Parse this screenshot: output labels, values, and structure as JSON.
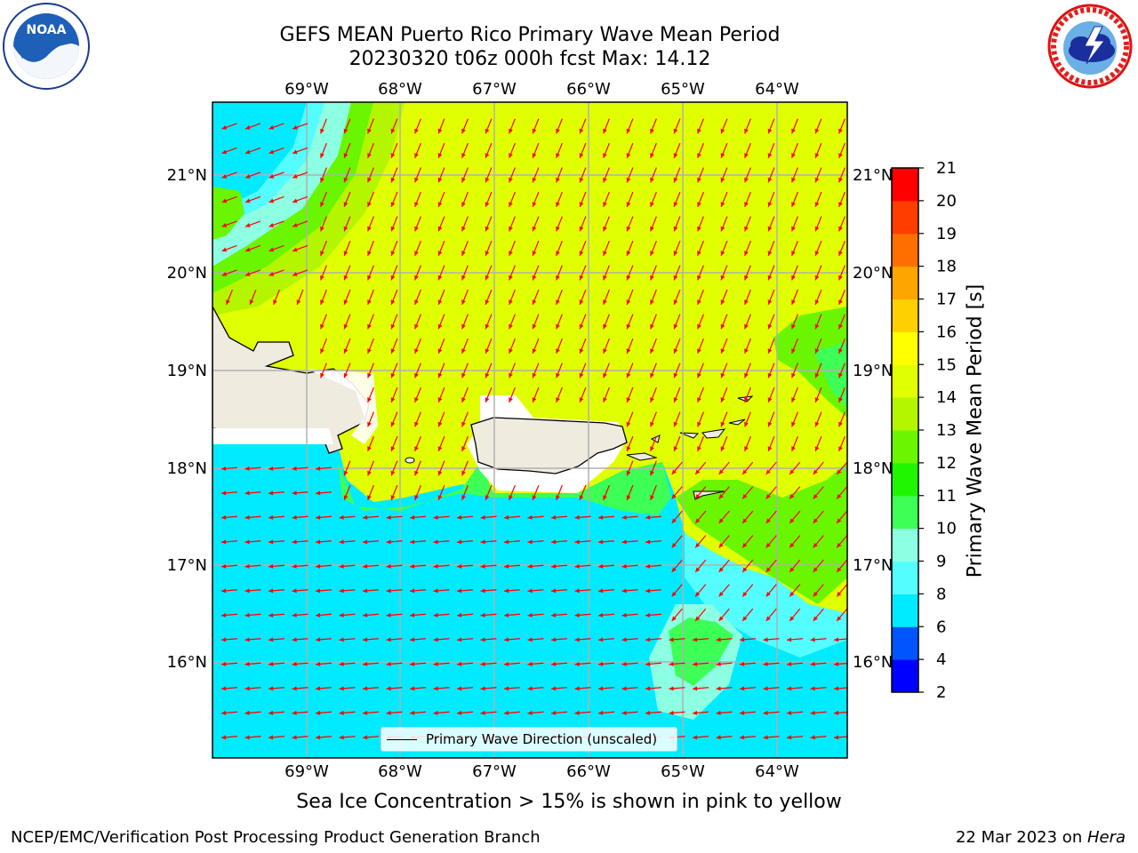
{
  "header": {
    "title_line1": "GEFS MEAN Puerto Rico Primary Wave Mean Period",
    "title_line2": "20230320 t06z 000h fcst   Max: 14.12"
  },
  "logos": {
    "noaa": {
      "icon": "noaa-logo",
      "text": "NOAA",
      "ring_text": "NATIONAL OCEANIC AND ATMOSPHERIC ADMINISTRATION · U.S. DEPARTMENT OF COMMERCE"
    },
    "nws": {
      "icon": "nws-logo",
      "ring_text": "NATIONAL WEATHER SERVICE"
    }
  },
  "map": {
    "lon_labels": [
      "69°W",
      "68°W",
      "67°W",
      "66°W",
      "65°W",
      "64°W"
    ],
    "lat_labels": [
      "21°N",
      "20°N",
      "19°N",
      "18°N",
      "17°N",
      "16°N"
    ],
    "land_color": "#efecdf",
    "arrow_color": "#ff0000",
    "grid": true
  },
  "colorbar": {
    "title": "Primary Wave Mean Period [s]",
    "ticks": [
      "2",
      "4",
      "6",
      "8",
      "9",
      "10",
      "11",
      "12",
      "13",
      "14",
      "15",
      "16",
      "17",
      "18",
      "19",
      "20",
      "21"
    ],
    "colors": [
      "#0000ff",
      "#0055ff",
      "#00ebff",
      "#54fdff",
      "#8dffe2",
      "#3dff55",
      "#20f600",
      "#6af500",
      "#b4f500",
      "#e0ff00",
      "#ffff00",
      "#ffd100",
      "#ffa500",
      "#ff6f00",
      "#ff3d00",
      "#ff0000"
    ]
  },
  "legend": {
    "label": "Primary Wave Direction (unscaled)"
  },
  "caption": "Sea Ice Concentration > 15% is shown in pink to yellow",
  "footer": {
    "left": "NCEP/EMC/Verification Post Processing Product Generation Branch",
    "date": "22 Mar 2023 on ",
    "machine": "Hera"
  }
}
